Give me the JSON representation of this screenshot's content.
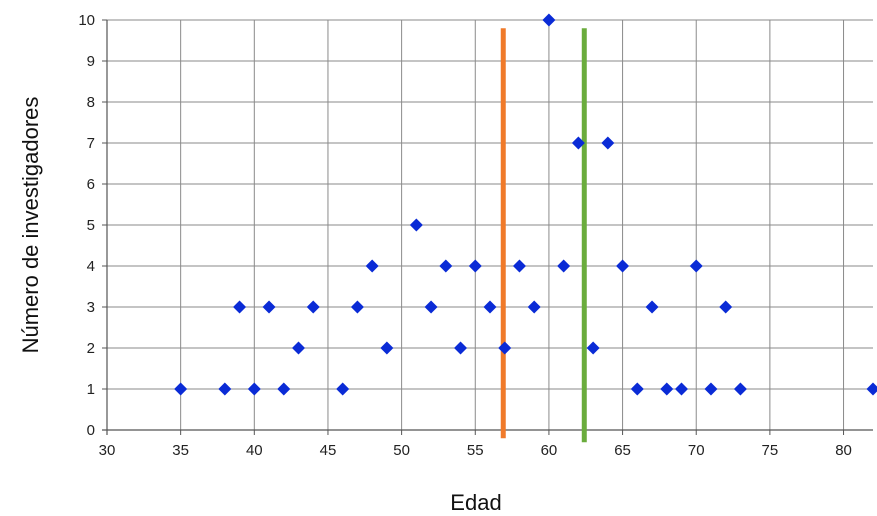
{
  "chart_data": {
    "type": "scatter",
    "xlabel": "Edad",
    "ylabel": "Número de investigadores",
    "xlim": [
      30,
      82
    ],
    "ylim": [
      0,
      10
    ],
    "xticks": [
      30,
      35,
      40,
      45,
      50,
      55,
      60,
      65,
      70,
      75,
      80
    ],
    "yticks": [
      0,
      1,
      2,
      3,
      4,
      5,
      6,
      7,
      8,
      9,
      10
    ],
    "grid": true,
    "legend": "none",
    "marker": "diamond",
    "series": [
      {
        "color": "#0a2bd6",
        "points": [
          [
            35,
            1
          ],
          [
            38,
            1
          ],
          [
            39,
            3
          ],
          [
            40,
            1
          ],
          [
            41,
            3
          ],
          [
            42,
            1
          ],
          [
            43,
            2
          ],
          [
            44,
            3
          ],
          [
            46,
            1
          ],
          [
            47,
            3
          ],
          [
            48,
            4
          ],
          [
            49,
            2
          ],
          [
            51,
            5
          ],
          [
            52,
            3
          ],
          [
            53,
            4
          ],
          [
            54,
            2
          ],
          [
            55,
            4
          ],
          [
            56,
            3
          ],
          [
            57,
            2
          ],
          [
            58,
            4
          ],
          [
            59,
            3
          ],
          [
            60,
            10
          ],
          [
            61,
            4
          ],
          [
            62,
            7
          ],
          [
            63,
            2
          ],
          [
            64,
            7
          ],
          [
            65,
            4
          ],
          [
            66,
            1
          ],
          [
            67,
            3
          ],
          [
            68,
            1
          ],
          [
            69,
            1
          ],
          [
            70,
            4
          ],
          [
            71,
            1
          ],
          [
            72,
            3
          ],
          [
            73,
            1
          ],
          [
            82,
            1
          ]
        ]
      }
    ],
    "reference_lines": [
      {
        "x": 56.9,
        "y_range": [
          -0.2,
          9.8
        ],
        "color": "#f07a2a"
      },
      {
        "x": 62.4,
        "y_range": [
          -0.3,
          9.8
        ],
        "color": "#6aac3c"
      }
    ]
  }
}
